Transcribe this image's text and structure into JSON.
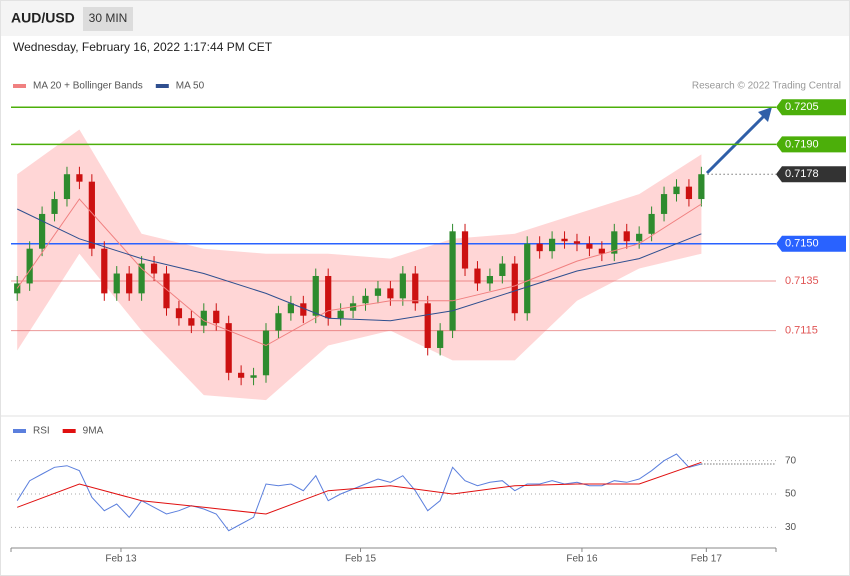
{
  "header": {
    "symbol": "AUD/USD",
    "interval": "30 MIN",
    "datetime": "Wednesday, February 16, 2022 1:17:44 PM CET",
    "credit": "Research © 2022 Trading Central"
  },
  "chart_data": [
    {
      "type": "candlestick",
      "xlim": [
        -0.5,
        61
      ],
      "ylim": [
        0.7081,
        0.7222
      ],
      "up_color": "#2e8b2e",
      "down_color": "#cc1111",
      "candles": {
        "open": [
          0.713,
          0.7134,
          0.7148,
          0.7162,
          0.7168,
          0.7178,
          0.7175,
          0.7148,
          0.713,
          0.7138,
          0.713,
          0.7142,
          0.7138,
          0.7124,
          0.712,
          0.7117,
          0.7123,
          0.7118,
          0.7098,
          0.7096,
          0.7097,
          0.7115,
          0.7122,
          0.7126,
          0.7121,
          0.7137,
          0.712,
          0.7123,
          0.7126,
          0.7129,
          0.7132,
          0.7128,
          0.7138,
          0.7126,
          0.7108,
          0.7115,
          0.7155,
          0.714,
          0.7134,
          0.7137,
          0.7142,
          0.7122,
          0.715,
          0.7147,
          0.7152,
          0.7151,
          0.715,
          0.7148,
          0.7146,
          0.7155,
          0.7151,
          0.7154,
          0.7162,
          0.717,
          0.7173,
          0.7168
        ],
        "high": [
          0.7137,
          0.7151,
          0.7165,
          0.7171,
          0.7181,
          0.7181,
          0.7178,
          0.7151,
          0.7141,
          0.7141,
          0.7145,
          0.7145,
          0.7141,
          0.7127,
          0.7123,
          0.7126,
          0.7126,
          0.7121,
          0.7101,
          0.71,
          0.7118,
          0.7125,
          0.7129,
          0.7129,
          0.714,
          0.714,
          0.7126,
          0.7129,
          0.7132,
          0.7135,
          0.7135,
          0.7141,
          0.7141,
          0.7129,
          0.7118,
          0.7158,
          0.7158,
          0.7143,
          0.714,
          0.7145,
          0.7145,
          0.7153,
          0.7153,
          0.7155,
          0.7155,
          0.7154,
          0.7153,
          0.7151,
          0.7158,
          0.7158,
          0.7157,
          0.7165,
          0.7173,
          0.7176,
          0.7176,
          0.7181
        ],
        "low": [
          0.7127,
          0.7131,
          0.7145,
          0.7159,
          0.7165,
          0.7172,
          0.7145,
          0.7127,
          0.7127,
          0.7127,
          0.7127,
          0.7135,
          0.7121,
          0.7117,
          0.7114,
          0.7114,
          0.7115,
          0.7095,
          0.7093,
          0.7093,
          0.7094,
          0.7112,
          0.7119,
          0.7118,
          0.7118,
          0.7117,
          0.7117,
          0.712,
          0.7123,
          0.7126,
          0.7125,
          0.7125,
          0.7123,
          0.7105,
          0.7105,
          0.7112,
          0.7137,
          0.7131,
          0.7131,
          0.7134,
          0.7119,
          0.7119,
          0.7144,
          0.7144,
          0.7148,
          0.7147,
          0.7145,
          0.7143,
          0.7143,
          0.7148,
          0.7148,
          0.7151,
          0.7159,
          0.7167,
          0.7165,
          0.7165
        ],
        "close": [
          0.7134,
          0.7148,
          0.7162,
          0.7168,
          0.7178,
          0.7175,
          0.7148,
          0.713,
          0.7138,
          0.713,
          0.7142,
          0.7138,
          0.7124,
          0.712,
          0.7117,
          0.7123,
          0.7118,
          0.7098,
          0.7096,
          0.7097,
          0.7115,
          0.7122,
          0.7126,
          0.7121,
          0.7137,
          0.712,
          0.7123,
          0.7126,
          0.7129,
          0.7132,
          0.7128,
          0.7138,
          0.7126,
          0.7108,
          0.7115,
          0.7155,
          0.714,
          0.7134,
          0.7137,
          0.7142,
          0.7122,
          0.715,
          0.7147,
          0.7152,
          0.7151,
          0.715,
          0.7148,
          0.7146,
          0.7155,
          0.7151,
          0.7154,
          0.7162,
          0.717,
          0.7173,
          0.7168,
          0.7178
        ]
      },
      "series": [
        {
          "name": "MA 20 + Bollinger Bands",
          "color": "#f08080",
          "band_color": "#ffd6d6",
          "x": [
            0,
            5,
            10,
            15,
            20,
            25,
            30,
            35,
            40,
            45,
            50,
            55
          ],
          "values": [
            0.7132,
            0.7168,
            0.714,
            0.7119,
            0.7109,
            0.7123,
            0.7127,
            0.7127,
            0.7133,
            0.7143,
            0.715,
            0.7166
          ],
          "upper": [
            0.7178,
            0.7196,
            0.7154,
            0.7148,
            0.7146,
            0.7146,
            0.7144,
            0.7152,
            0.7154,
            0.7162,
            0.717,
            0.7186
          ],
          "lower": [
            0.7107,
            0.7146,
            0.7115,
            0.7089,
            0.7087,
            0.7109,
            0.7115,
            0.7103,
            0.7103,
            0.7127,
            0.714,
            0.7146
          ]
        },
        {
          "name": "MA 50",
          "color": "#2f4f8f",
          "x": [
            0,
            5,
            10,
            15,
            20,
            25,
            30,
            35,
            40,
            45,
            50,
            55
          ],
          "values": [
            0.7164,
            0.7152,
            0.7144,
            0.7138,
            0.713,
            0.712,
            0.7119,
            0.7123,
            0.7131,
            0.7139,
            0.7144,
            0.7154
          ]
        }
      ],
      "levels": [
        {
          "value": 0.7205,
          "color": "#4caf0a",
          "style": "box"
        },
        {
          "value": 0.719,
          "label": "0.7190",
          "color": "#4caf0a",
          "style": "box"
        },
        {
          "value": 0.7178,
          "color": "#333333",
          "style": "dotted"
        },
        {
          "value": 0.715,
          "label": "0.7150",
          "color": "#2962ff",
          "style": "box"
        },
        {
          "value": 0.7135,
          "color": "#e05555",
          "style": "text"
        },
        {
          "value": 0.7115,
          "color": "#e05555",
          "style": "text"
        }
      ]
    },
    {
      "type": "line",
      "xlim": [
        -0.5,
        61
      ],
      "ylim": [
        20,
        92
      ],
      "yticks": [
        30,
        50,
        70
      ],
      "xticks": [
        {
          "value": 8.34,
          "label": "Feb 13"
        },
        {
          "value": 27.6,
          "label": "Feb 15"
        },
        {
          "value": 45.4,
          "label": "Feb 16"
        },
        {
          "value": 55.4,
          "label": "Feb 17"
        }
      ],
      "series": [
        {
          "name": "RSI",
          "color": "#5b7fdd",
          "values": [
            46,
            58,
            62,
            66,
            67,
            64,
            48,
            40,
            44,
            36,
            46,
            42,
            38,
            40,
            43,
            41,
            38,
            28,
            32,
            36,
            56,
            55,
            56,
            52,
            61,
            46,
            50,
            53,
            56,
            59,
            57,
            61,
            52,
            40,
            46,
            66,
            58,
            55,
            57,
            58,
            52,
            56,
            56,
            58,
            56,
            57,
            55,
            55,
            58,
            57,
            59,
            64,
            70,
            74,
            66,
            68
          ]
        },
        {
          "name": "9MA",
          "color": "#e01010",
          "x": [
            0,
            5,
            10,
            15,
            20,
            25,
            30,
            35,
            40,
            45,
            50,
            55
          ],
          "values": [
            42,
            56,
            46,
            42,
            38,
            52,
            55,
            50,
            55,
            56,
            56,
            69
          ]
        }
      ]
    }
  ]
}
